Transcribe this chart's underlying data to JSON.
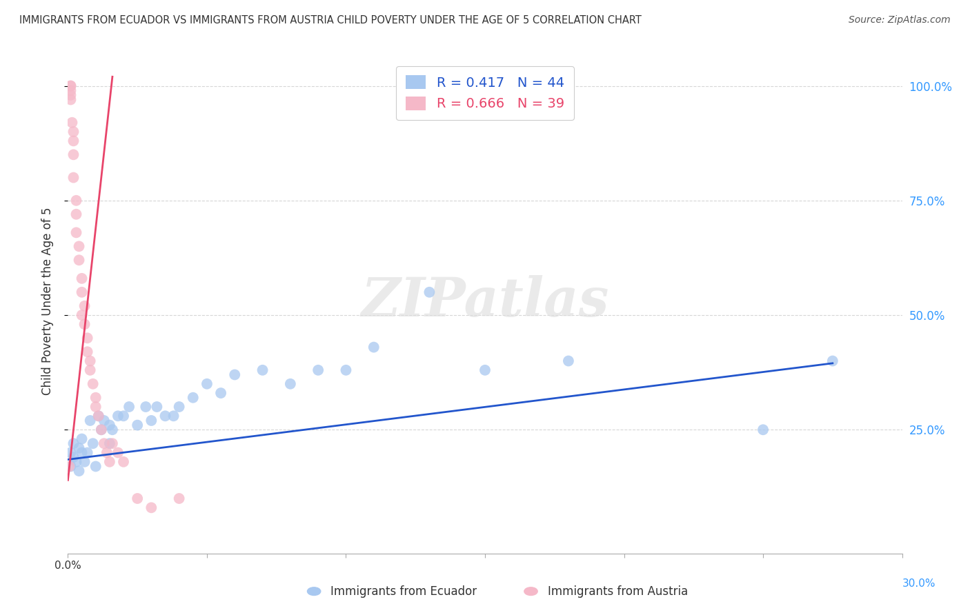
{
  "title": "IMMIGRANTS FROM ECUADOR VS IMMIGRANTS FROM AUSTRIA CHILD POVERTY UNDER THE AGE OF 5 CORRELATION CHART",
  "source": "Source: ZipAtlas.com",
  "ylabel": "Child Poverty Under the Age of 5",
  "y_tick_labels": [
    "100.0%",
    "75.0%",
    "50.0%",
    "25.0%"
  ],
  "y_tick_values": [
    1.0,
    0.75,
    0.5,
    0.25
  ],
  "xlim": [
    0.0,
    0.3
  ],
  "ylim": [
    -0.02,
    1.08
  ],
  "ecuador_color": "#a8c8f0",
  "austria_color": "#f5b8c8",
  "ecuador_line_color": "#2255cc",
  "austria_line_color": "#e8446a",
  "ecuador_R": 0.417,
  "ecuador_N": 44,
  "austria_R": 0.666,
  "austria_N": 39,
  "ecuador_scatter_x": [
    0.001,
    0.001,
    0.002,
    0.002,
    0.003,
    0.004,
    0.004,
    0.005,
    0.005,
    0.006,
    0.007,
    0.008,
    0.009,
    0.01,
    0.011,
    0.012,
    0.013,
    0.015,
    0.015,
    0.016,
    0.018,
    0.02,
    0.022,
    0.025,
    0.028,
    0.03,
    0.032,
    0.035,
    0.038,
    0.04,
    0.045,
    0.05,
    0.055,
    0.06,
    0.07,
    0.08,
    0.09,
    0.1,
    0.11,
    0.13,
    0.15,
    0.18,
    0.25,
    0.275
  ],
  "ecuador_scatter_y": [
    0.2,
    0.17,
    0.19,
    0.22,
    0.18,
    0.21,
    0.16,
    0.2,
    0.23,
    0.18,
    0.2,
    0.27,
    0.22,
    0.17,
    0.28,
    0.25,
    0.27,
    0.22,
    0.26,
    0.25,
    0.28,
    0.28,
    0.3,
    0.26,
    0.3,
    0.27,
    0.3,
    0.28,
    0.28,
    0.3,
    0.32,
    0.35,
    0.33,
    0.37,
    0.38,
    0.35,
    0.38,
    0.38,
    0.43,
    0.55,
    0.38,
    0.4,
    0.25,
    0.4
  ],
  "austria_scatter_x": [
    0.0005,
    0.001,
    0.001,
    0.001,
    0.001,
    0.001,
    0.0015,
    0.002,
    0.002,
    0.002,
    0.002,
    0.003,
    0.003,
    0.003,
    0.004,
    0.004,
    0.005,
    0.005,
    0.005,
    0.006,
    0.006,
    0.007,
    0.007,
    0.008,
    0.008,
    0.009,
    0.01,
    0.01,
    0.011,
    0.012,
    0.013,
    0.014,
    0.015,
    0.016,
    0.018,
    0.02,
    0.025,
    0.03,
    0.04
  ],
  "austria_scatter_y": [
    0.17,
    0.97,
    0.98,
    0.99,
    1.0,
    1.0,
    0.92,
    0.88,
    0.9,
    0.85,
    0.8,
    0.68,
    0.75,
    0.72,
    0.62,
    0.65,
    0.55,
    0.58,
    0.5,
    0.48,
    0.52,
    0.42,
    0.45,
    0.38,
    0.4,
    0.35,
    0.3,
    0.32,
    0.28,
    0.25,
    0.22,
    0.2,
    0.18,
    0.22,
    0.2,
    0.18,
    0.1,
    0.08,
    0.1
  ],
  "ecuador_trend_x": [
    0.0,
    0.275
  ],
  "ecuador_trend_y": [
    0.185,
    0.395
  ],
  "austria_trend_x": [
    0.0,
    0.016
  ],
  "austria_trend_y": [
    0.14,
    1.02
  ],
  "background_color": "#ffffff",
  "grid_color": "#cccccc",
  "watermark_text": "ZIPatlas",
  "right_axis_color": "#3399ff",
  "bottom_legend_label1": "Immigrants from Ecuador",
  "bottom_legend_label2": "Immigrants from Austria"
}
